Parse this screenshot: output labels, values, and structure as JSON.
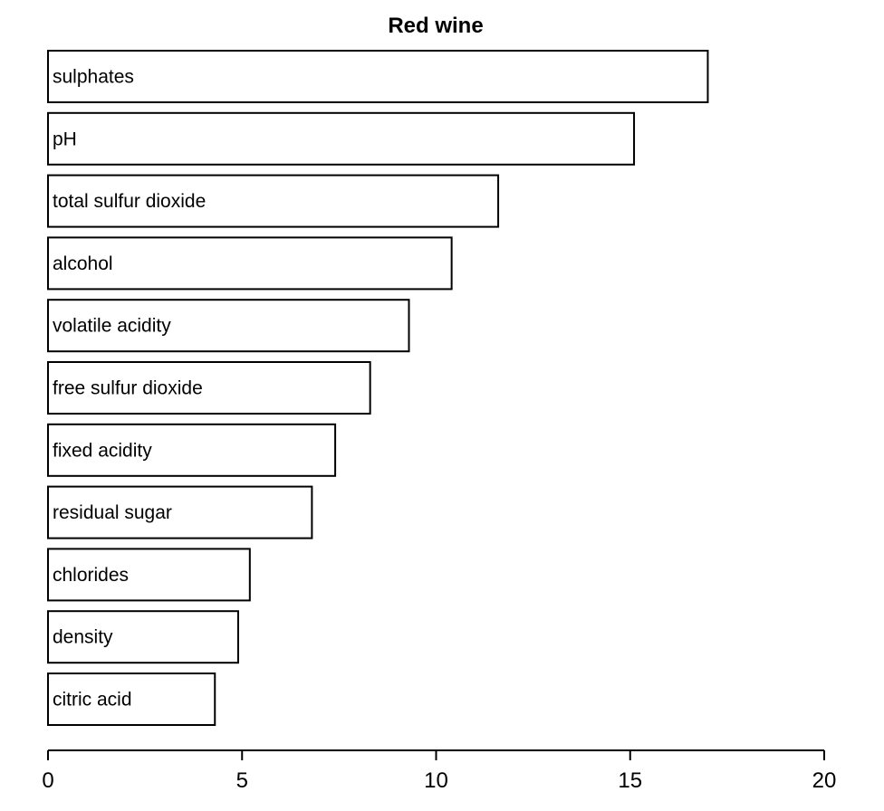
{
  "chart_data": {
    "type": "bar",
    "orientation": "horizontal",
    "title": "Red wine",
    "xlabel": "",
    "ylabel": "",
    "categories": [
      "sulphates",
      "pH",
      "total sulfur dioxide",
      "alcohol",
      "volatile acidity",
      "free sulfur dioxide",
      "fixed acidity",
      "residual sugar",
      "chlorides",
      "density",
      "citric acid"
    ],
    "values": [
      17.0,
      15.1,
      11.6,
      10.4,
      9.3,
      8.3,
      7.4,
      6.8,
      5.2,
      4.9,
      4.3
    ],
    "xlim": [
      0,
      20
    ],
    "xticks": [
      "0",
      "5",
      "10",
      "15",
      "20"
    ],
    "grid": false,
    "legend": "none",
    "bar_fill": "#ffffff",
    "bar_stroke": "#000000"
  }
}
